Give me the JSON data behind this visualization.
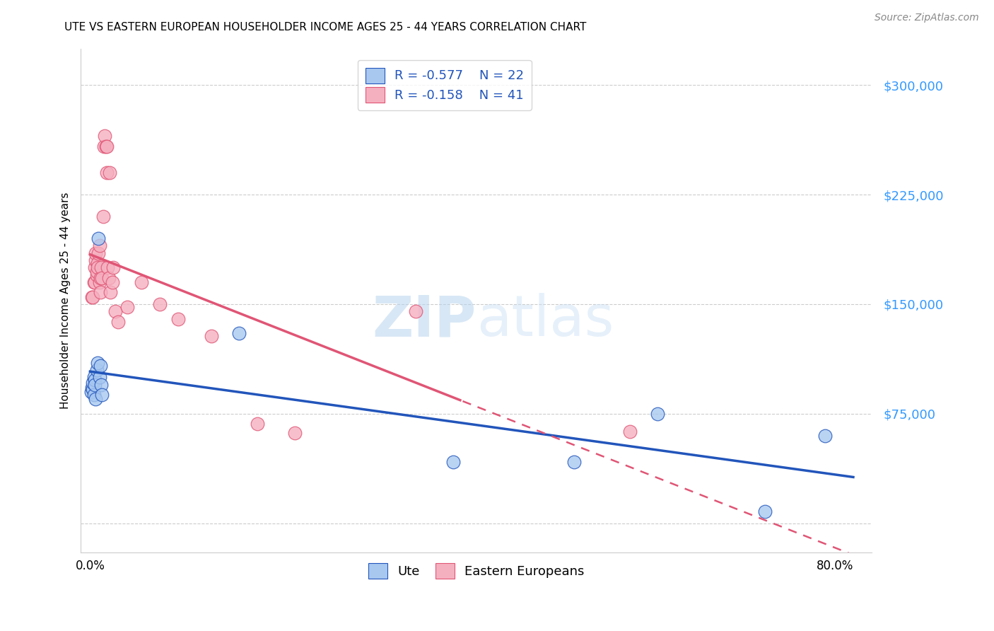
{
  "title": "UTE VS EASTERN EUROPEAN HOUSEHOLDER INCOME AGES 25 - 44 YEARS CORRELATION CHART",
  "source": "Source: ZipAtlas.com",
  "ylabel": "Householder Income Ages 25 - 44 years",
  "legend_label1": "Ute",
  "legend_label2": "Eastern Europeans",
  "R1": -0.577,
  "N1": 22,
  "R2": -0.158,
  "N2": 41,
  "color_ute": "#a8c8f0",
  "color_ee": "#f5b0c0",
  "color_line_ute": "#2255bb",
  "color_line_ee": "#e05575",
  "xlim": [
    -0.01,
    0.84
  ],
  "ylim": [
    -20000,
    325000
  ],
  "xticks": [
    0.0,
    0.1,
    0.2,
    0.3,
    0.4,
    0.5,
    0.6,
    0.7,
    0.8
  ],
  "xtick_labels": [
    "0.0%",
    "",
    "",
    "",
    "",
    "",
    "",
    "",
    "80.0%"
  ],
  "ytick_positions": [
    0,
    75000,
    150000,
    225000,
    300000
  ],
  "ytick_labels": [
    "",
    "$75,000",
    "$150,000",
    "$225,000",
    "$300,000"
  ],
  "ute_x": [
    0.001,
    0.002,
    0.003,
    0.003,
    0.004,
    0.004,
    0.005,
    0.005,
    0.006,
    0.007,
    0.008,
    0.009,
    0.01,
    0.011,
    0.012,
    0.013,
    0.16,
    0.39,
    0.52,
    0.61,
    0.725,
    0.79
  ],
  "ute_y": [
    90000,
    93000,
    92000,
    96000,
    88000,
    100000,
    98000,
    95000,
    85000,
    105000,
    110000,
    195000,
    100000,
    108000,
    95000,
    88000,
    130000,
    42000,
    42000,
    75000,
    8000,
    60000
  ],
  "ee_x": [
    0.002,
    0.003,
    0.004,
    0.005,
    0.005,
    0.006,
    0.006,
    0.007,
    0.007,
    0.008,
    0.008,
    0.009,
    0.01,
    0.01,
    0.011,
    0.011,
    0.012,
    0.013,
    0.014,
    0.015,
    0.016,
    0.017,
    0.018,
    0.018,
    0.019,
    0.02,
    0.021,
    0.022,
    0.024,
    0.025,
    0.027,
    0.03,
    0.04,
    0.055,
    0.075,
    0.095,
    0.13,
    0.18,
    0.22,
    0.35,
    0.58
  ],
  "ee_y": [
    155000,
    155000,
    165000,
    165000,
    175000,
    180000,
    185000,
    170000,
    172000,
    178000,
    175000,
    185000,
    190000,
    165000,
    158000,
    168000,
    175000,
    168000,
    210000,
    258000,
    265000,
    258000,
    258000,
    240000,
    175000,
    168000,
    240000,
    158000,
    165000,
    175000,
    145000,
    138000,
    148000,
    165000,
    150000,
    140000,
    128000,
    68000,
    62000,
    145000,
    63000
  ],
  "watermark_zip": "ZIP",
  "watermark_atlas": "atlas",
  "background_color": "#ffffff",
  "grid_color": "#cccccc",
  "ee_dash_split": 0.4
}
